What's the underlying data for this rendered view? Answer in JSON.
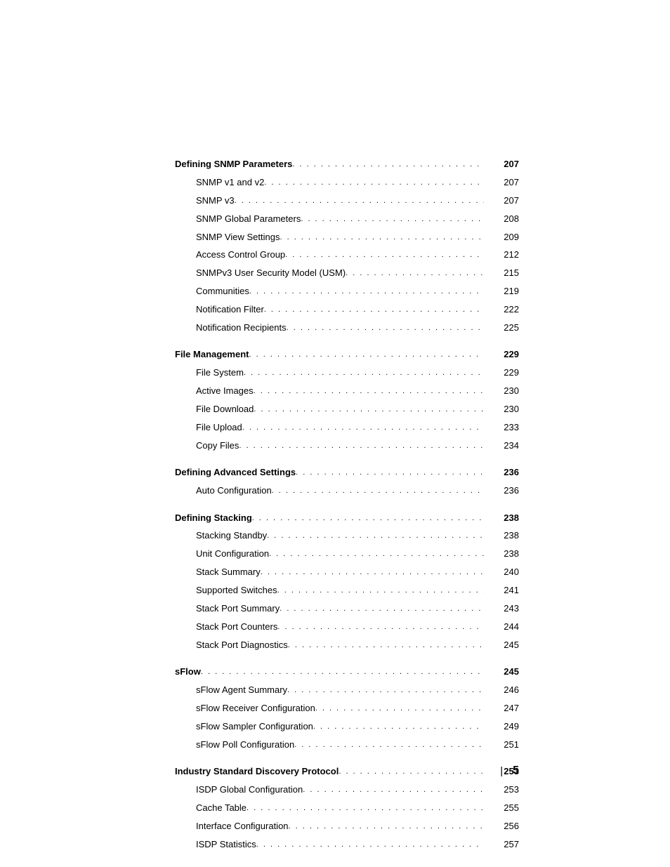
{
  "sections": [
    {
      "heading": {
        "title": "Defining SNMP Parameters",
        "page": "207"
      },
      "items": [
        {
          "title": "SNMP v1 and v2",
          "page": "207"
        },
        {
          "title": "SNMP v3",
          "page": "207"
        },
        {
          "title": "SNMP Global Parameters",
          "page": "208"
        },
        {
          "title": "SNMP View Settings",
          "page": "209"
        },
        {
          "title": "Access Control Group",
          "page": "212"
        },
        {
          "title": "SNMPv3 User Security Model (USM)",
          "page": "215"
        },
        {
          "title": "Communities",
          "page": "219"
        },
        {
          "title": "Notification Filter",
          "page": "222"
        },
        {
          "title": "Notification Recipients",
          "page": "225"
        }
      ]
    },
    {
      "heading": {
        "title": "File Management",
        "page": "229"
      },
      "items": [
        {
          "title": "File System",
          "page": "229"
        },
        {
          "title": "Active Images",
          "page": "230"
        },
        {
          "title": "File Download",
          "page": "230"
        },
        {
          "title": "File Upload",
          "page": "233"
        },
        {
          "title": "Copy Files",
          "page": "234"
        }
      ]
    },
    {
      "heading": {
        "title": "Defining Advanced Settings",
        "page": "236"
      },
      "items": [
        {
          "title": "Auto Configuration",
          "page": "236"
        }
      ]
    },
    {
      "heading": {
        "title": "Defining Stacking",
        "page": "238"
      },
      "items": [
        {
          "title": "Stacking Standby",
          "page": "238"
        },
        {
          "title": "Unit Configuration",
          "page": "238"
        },
        {
          "title": "Stack Summary",
          "page": "240"
        },
        {
          "title": "Supported Switches",
          "page": "241"
        },
        {
          "title": "Stack Port Summary",
          "page": "243"
        },
        {
          "title": "Stack Port Counters",
          "page": "244"
        },
        {
          "title": "Stack Port Diagnostics",
          "page": "245"
        }
      ]
    },
    {
      "heading": {
        "title": "sFlow",
        "page": "245"
      },
      "items": [
        {
          "title": "sFlow Agent Summary",
          "page": "246"
        },
        {
          "title": "sFlow Receiver Configuration",
          "page": "247"
        },
        {
          "title": "sFlow Sampler Configuration",
          "page": "249"
        },
        {
          "title": "sFlow Poll Configuration",
          "page": "251"
        }
      ]
    },
    {
      "heading": {
        "title": "Industry Standard Discovery Protocol",
        "page": "253"
      },
      "items": [
        {
          "title": "ISDP Global Configuration",
          "page": "253"
        },
        {
          "title": "Cache Table",
          "page": "255"
        },
        {
          "title": "Interface Configuration",
          "page": "256"
        },
        {
          "title": "ISDP Statistics",
          "page": "257"
        }
      ]
    }
  ],
  "footer": {
    "page_number": "5"
  }
}
